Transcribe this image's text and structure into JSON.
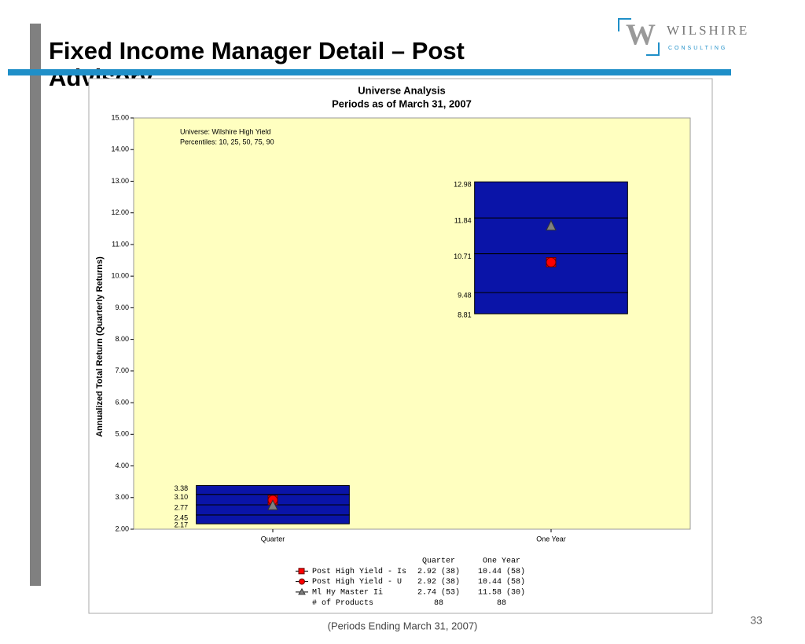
{
  "header": {
    "title": "Fixed Income Manager Detail – Post Advisory",
    "logo_name": "WILSHIRE",
    "logo_sub": "CONSULTING",
    "logo_mark": "W"
  },
  "chart_data": {
    "type": "box",
    "title": "Universe Analysis",
    "subtitle": "Periods as of March 31, 2007",
    "y_label": "Annualized Total Return (Quarterly Returns)",
    "annotations": [
      "Universe: Wilshire High Yield",
      "Percentiles: 10, 25, 50, 75, 90"
    ],
    "categories": [
      "Quarter",
      "One Year"
    ],
    "percentiles": [
      [
        2.17,
        2.45,
        2.77,
        3.1,
        3.38
      ],
      [
        8.81,
        9.48,
        10.71,
        11.84,
        12.98
      ]
    ],
    "percentile_labels": [
      [
        "2.17",
        "2.45",
        "2.77",
        "3.10",
        "3.38"
      ],
      [
        "8.81",
        "9.48",
        "10.71",
        "11.84",
        "12.98"
      ]
    ],
    "box_color": "#0a14a8",
    "plot_bg": "#ffffc0",
    "ylim": [
      2,
      15
    ],
    "yticks": [
      {
        "value": 2,
        "label": "2.00"
      },
      {
        "value": 3,
        "label": "3.00"
      },
      {
        "value": 4,
        "label": "4.00"
      },
      {
        "value": 5,
        "label": "5.00"
      },
      {
        "value": 6,
        "label": "6.00"
      },
      {
        "value": 7,
        "label": "7.00"
      },
      {
        "value": 8,
        "label": "8.00"
      },
      {
        "value": 9,
        "label": "9.00"
      },
      {
        "value": 10,
        "label": "10.00"
      },
      {
        "value": 11,
        "label": "11.00"
      },
      {
        "value": 12,
        "label": "12.00"
      },
      {
        "value": 13,
        "label": "13.00"
      },
      {
        "value": 14,
        "label": "14.00"
      },
      {
        "value": 15,
        "label": "15.00"
      }
    ],
    "series": [
      {
        "name": "Post High Yield - Is",
        "marker": "square",
        "color": "#ff0000",
        "values": [
          2.92,
          10.44
        ],
        "value_labels": [
          "2.92 (38)",
          "10.44 (58)"
        ]
      },
      {
        "name": "Post High Yield - U",
        "marker": "circle",
        "color": "#ff0000",
        "values": [
          2.92,
          10.44
        ],
        "value_labels": [
          "2.92 (38)",
          "10.44 (58)"
        ]
      },
      {
        "name": "Ml Hy Master Ii",
        "marker": "triangle",
        "color": "#808080",
        "values": [
          2.74,
          11.58
        ],
        "value_labels": [
          "2.74 (53)",
          "11.58 (30)"
        ]
      }
    ],
    "products_label": "# of Products",
    "products": [
      88,
      88
    ]
  },
  "footer": {
    "note": "(Periods Ending March 31, 2007)",
    "page": "33"
  }
}
